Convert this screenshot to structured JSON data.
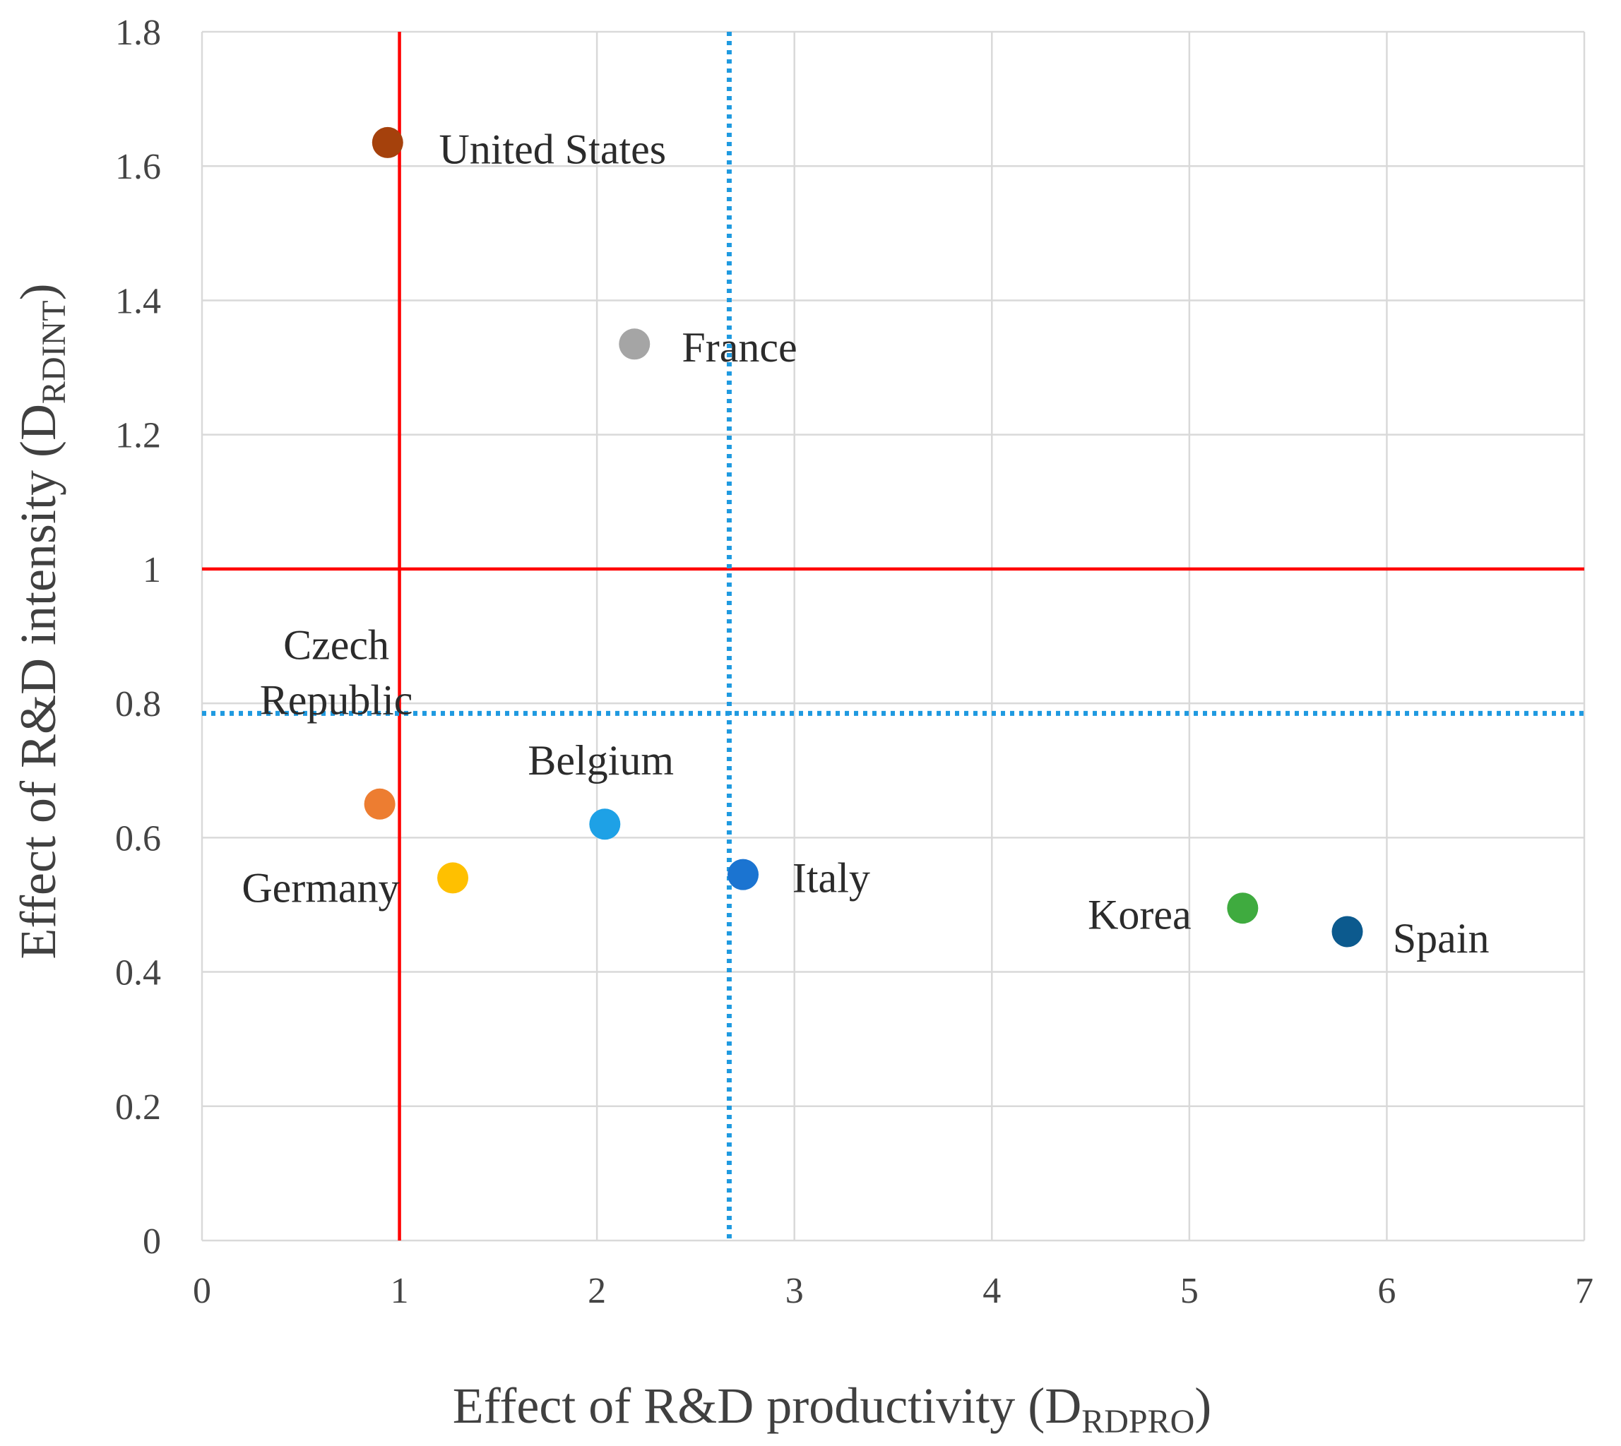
{
  "chart_data": {
    "type": "scatter",
    "xlabel": {
      "main": "Effect of R&D productivity (D",
      "sub": "RDPRO",
      "close": ")"
    },
    "ylabel": {
      "main": "Effect of R&D intensity (D",
      "sub": "RDINT",
      "close": ")"
    },
    "xlim": [
      0,
      7
    ],
    "ylim": [
      0,
      1.8
    ],
    "xticks": [
      {
        "value": 0,
        "label": "0"
      },
      {
        "value": 1,
        "label": "1"
      },
      {
        "value": 2,
        "label": "2"
      },
      {
        "value": 3,
        "label": "3"
      },
      {
        "value": 4,
        "label": "4"
      },
      {
        "value": 5,
        "label": "5"
      },
      {
        "value": 6,
        "label": "6"
      },
      {
        "value": 7,
        "label": "7"
      }
    ],
    "yticks": [
      {
        "value": 0,
        "label": "0"
      },
      {
        "value": 0.2,
        "label": "0.2"
      },
      {
        "value": 0.4,
        "label": "0.4"
      },
      {
        "value": 0.6,
        "label": "0.6"
      },
      {
        "value": 0.8,
        "label": "0.8"
      },
      {
        "value": 1,
        "label": "1"
      },
      {
        "value": 1.2,
        "label": "1.2"
      },
      {
        "value": 1.4,
        "label": "1.4"
      },
      {
        "value": 1.6,
        "label": "1.6"
      },
      {
        "value": 1.8,
        "label": "1.8"
      }
    ],
    "grid": true,
    "reference_lines": [
      {
        "orientation": "vertical",
        "value": 1,
        "style": "solid",
        "color": "#ff0000"
      },
      {
        "orientation": "horizontal",
        "value": 1,
        "style": "solid",
        "color": "#ff0000"
      },
      {
        "orientation": "vertical",
        "value": 2.67,
        "style": "dotted",
        "color": "#1f9ae0"
      },
      {
        "orientation": "horizontal",
        "value": 0.785,
        "style": "dotted",
        "color": "#1f9ae0"
      }
    ],
    "points": [
      {
        "name": "United States",
        "lines": [
          "United States"
        ],
        "x": 0.94,
        "y": 1.635,
        "color": "#a5410c",
        "label_anchor": "start",
        "label_dx": 0.26,
        "label_dy": -0.01
      },
      {
        "name": "France",
        "lines": [
          "France"
        ],
        "x": 2.19,
        "y": 1.335,
        "color": "#a5a5a5",
        "label_anchor": "start",
        "label_dx": 0.24,
        "label_dy": -0.005
      },
      {
        "name": "Czech Republic",
        "lines": [
          "Czech",
          "Republic"
        ],
        "x": 0.9,
        "y": 0.65,
        "color": "#ed7d31",
        "label_anchor": "middle",
        "label_dx": -0.22,
        "label_dy": 0.155
      },
      {
        "name": "Belgium",
        "lines": [
          "Belgium"
        ],
        "x": 2.04,
        "y": 0.62,
        "color": "#1ea1e6",
        "label_anchor": "middle",
        "label_dx": -0.02,
        "label_dy": 0.095
      },
      {
        "name": "Germany",
        "lines": [
          "Germany"
        ],
        "x": 1.27,
        "y": 0.54,
        "color": "#ffc000",
        "label_anchor": "end",
        "label_dx": -0.27,
        "label_dy": -0.015
      },
      {
        "name": "Italy",
        "lines": [
          "Italy"
        ],
        "x": 2.74,
        "y": 0.545,
        "color": "#1b74d1",
        "label_anchor": "start",
        "label_dx": 0.25,
        "label_dy": -0.005
      },
      {
        "name": "Korea",
        "lines": [
          "Korea"
        ],
        "x": 5.27,
        "y": 0.495,
        "color": "#3fab3f",
        "label_anchor": "end",
        "label_dx": -0.26,
        "label_dy": -0.01
      },
      {
        "name": "Spain",
        "lines": [
          "Spain"
        ],
        "x": 5.8,
        "y": 0.46,
        "color": "#0c5a8e",
        "label_anchor": "start",
        "label_dx": 0.23,
        "label_dy": -0.01
      }
    ]
  }
}
